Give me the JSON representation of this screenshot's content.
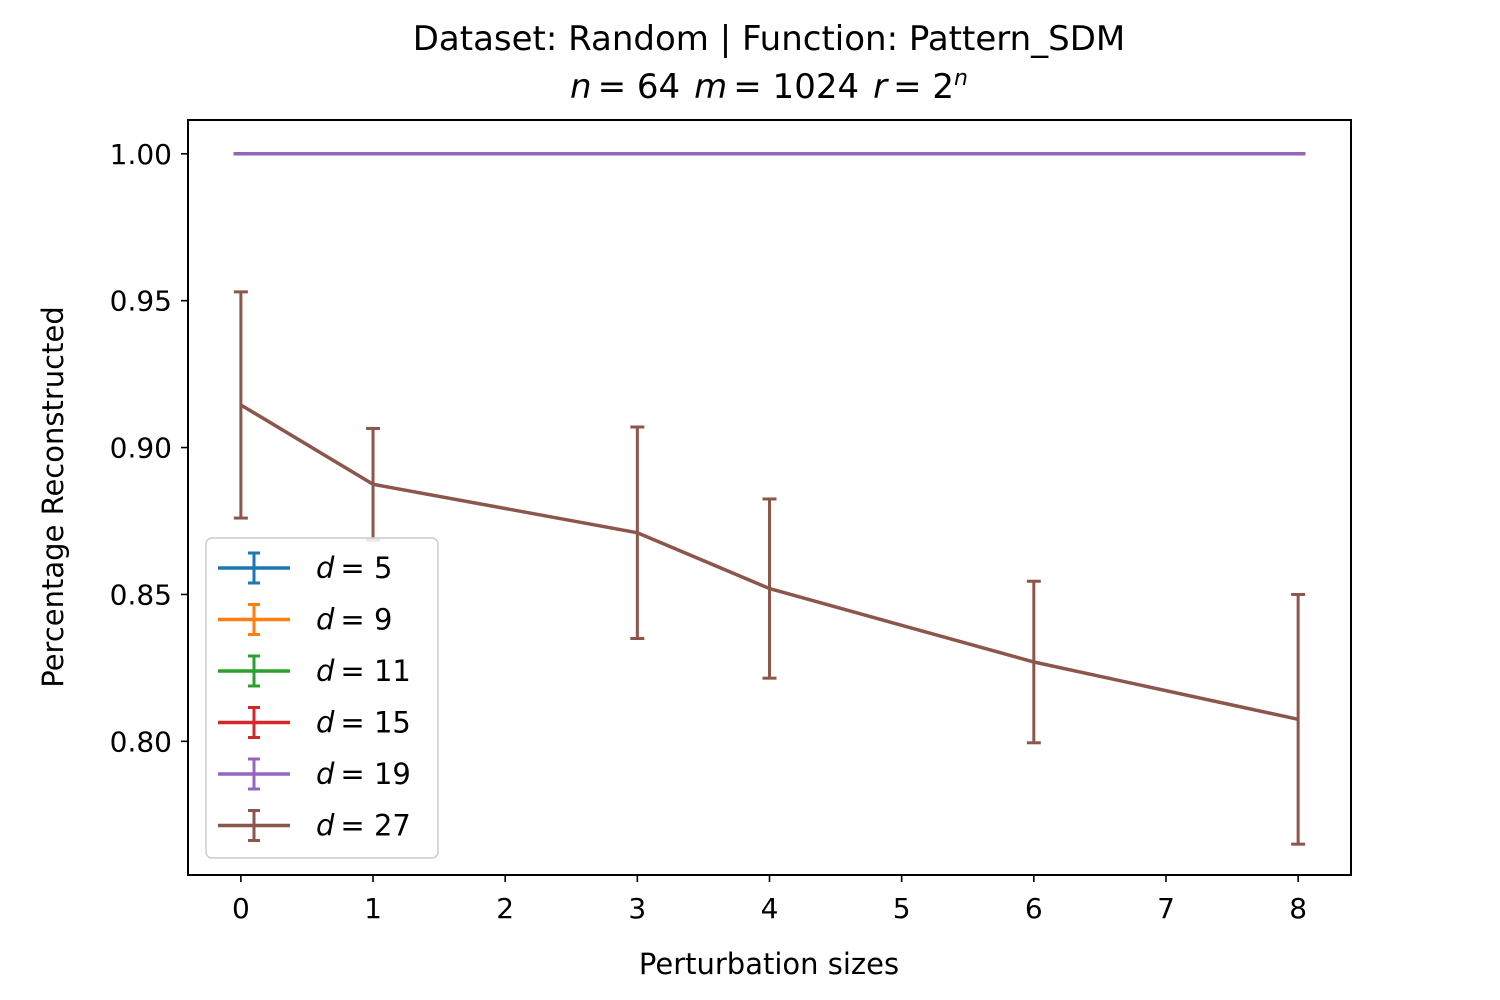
{
  "chart_data": {
    "type": "line",
    "title": "Dataset: Random | Function: Pattern_SDM",
    "subtitle": {
      "n_sym": "n",
      "n_val": "= 64",
      "m_sym": "m",
      "m_val": "= 1024",
      "r_sym": "r",
      "r_base": "= 2",
      "r_exp": "n"
    },
    "xlabel": "Perturbation sizes",
    "ylabel": "Percentage Reconstructed",
    "xlim": [
      -0.4,
      8.4
    ],
    "ylim": [
      0.7545,
      1.0115
    ],
    "xticks": [
      0,
      1,
      2,
      3,
      4,
      5,
      6,
      7,
      8
    ],
    "xtick_labels": [
      "0",
      "1",
      "2",
      "3",
      "4",
      "5",
      "6",
      "7",
      "8"
    ],
    "yticks": [
      0.8,
      0.85,
      0.9,
      0.95,
      1.0
    ],
    "ytick_labels": [
      "0.80",
      "0.85",
      "0.90",
      "0.95",
      "1.00"
    ],
    "grid": false,
    "legend_position": "lower-left",
    "x": [
      0,
      1,
      3,
      4,
      6,
      8
    ],
    "series": [
      {
        "name": "d = 5",
        "color": "#1f77b4",
        "values": [
          1.0,
          1.0,
          1.0,
          1.0,
          1.0,
          1.0
        ],
        "errors": [
          0,
          0,
          0,
          0,
          0,
          0
        ]
      },
      {
        "name": "d = 9",
        "color": "#ff7f0e",
        "values": [
          1.0,
          1.0,
          1.0,
          1.0,
          1.0,
          1.0
        ],
        "errors": [
          0,
          0,
          0,
          0,
          0,
          0
        ]
      },
      {
        "name": "d = 11",
        "color": "#2ca02c",
        "values": [
          1.0,
          1.0,
          1.0,
          1.0,
          1.0,
          1.0
        ],
        "errors": [
          0,
          0,
          0,
          0,
          0,
          0
        ]
      },
      {
        "name": "d = 15",
        "color": "#d62728",
        "values": [
          1.0,
          1.0,
          1.0,
          1.0,
          1.0,
          1.0
        ],
        "errors": [
          0,
          0,
          0,
          0,
          0,
          0
        ]
      },
      {
        "name": "d = 19",
        "color": "#9467bd",
        "values": [
          1.0,
          1.0,
          1.0,
          1.0,
          1.0,
          1.0
        ],
        "errors": [
          0,
          0,
          0,
          0,
          0,
          0
        ]
      },
      {
        "name": "d = 27",
        "color": "#8c564b",
        "values": [
          0.9145,
          0.8875,
          0.871,
          0.852,
          0.827,
          0.8075
        ],
        "errors": [
          0.0385,
          0.019,
          0.036,
          0.0305,
          0.0275,
          0.0425
        ]
      }
    ]
  }
}
